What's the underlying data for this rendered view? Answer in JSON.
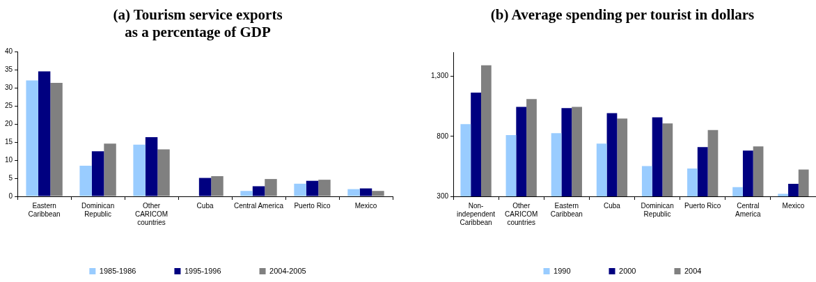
{
  "chart_data": [
    {
      "type": "bar",
      "title": "(a) Tourism service exports\nas a percentage of GDP",
      "categories": [
        "Eastern\nCaribbean",
        "Dominican\nRepublic",
        "Other\nCARICOM\ncountries",
        "Cuba",
        "Central America",
        "Puerto Rico",
        "Mexico"
      ],
      "series": [
        {
          "name": "1985-1986",
          "color": "#99ccff",
          "values": [
            32.1,
            8.5,
            14.3,
            null,
            1.5,
            3.5,
            2.0
          ]
        },
        {
          "name": "1995-1996",
          "color": "#000080",
          "values": [
            34.6,
            12.5,
            16.4,
            5.1,
            2.8,
            4.3,
            2.2
          ]
        },
        {
          "name": "2004-2005",
          "color": "#808080",
          "values": [
            31.4,
            14.6,
            13.0,
            5.6,
            4.8,
            4.6,
            1.5
          ]
        }
      ],
      "ylim": [
        0,
        40
      ],
      "yticks": [
        0,
        5,
        10,
        15,
        20,
        25,
        30,
        35,
        40
      ],
      "grid": false,
      "legend": "bottom"
    },
    {
      "type": "bar",
      "title": "(b) Average spending per tourist in dollars",
      "categories": [
        "Non-\nindependent\nCaribbean",
        "Other\nCARICOM\ncountries",
        "Eastern\nCaribbean",
        "Cuba",
        "Dominican\nRepublic",
        "Puerto Rico",
        "Central\nAmerica",
        "Mexico"
      ],
      "series": [
        {
          "name": "1990",
          "color": "#99ccff",
          "values": [
            902,
            811,
            826,
            740,
            553,
            532,
            377,
            321
          ]
        },
        {
          "name": "2000",
          "color": "#000080",
          "values": [
            1164,
            1045,
            1036,
            994,
            958,
            711,
            681,
            404
          ]
        },
        {
          "name": "2004",
          "color": "#808080",
          "values": [
            1392,
            1111,
            1045,
            949,
            908,
            853,
            717,
            523
          ]
        }
      ],
      "ylim": [
        300,
        1500
      ],
      "yticks": [
        300,
        800,
        {
          "value": 1300,
          "label": "1,300"
        }
      ],
      "grid": false,
      "legend": "bottom"
    }
  ]
}
